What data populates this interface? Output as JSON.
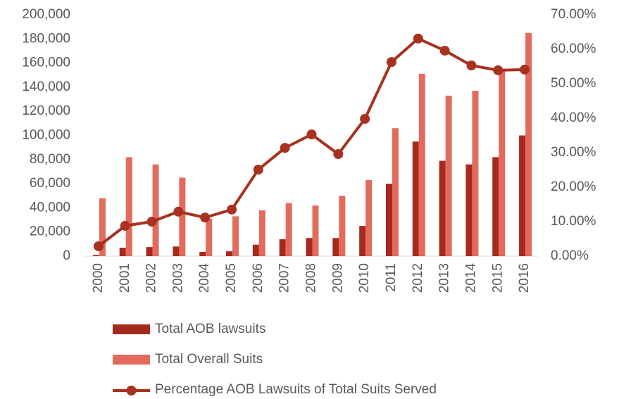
{
  "chart_data": {
    "type": "bar",
    "categories": [
      "2000",
      "2001",
      "2002",
      "2003",
      "2004",
      "2005",
      "2006",
      "2007",
      "2008",
      "2009",
      "2010",
      "2011",
      "2012",
      "2013",
      "2014",
      "2015",
      "2016"
    ],
    "series": [
      {
        "name": "Total AOB lawsuits",
        "type": "bar",
        "color": "#a52a1e",
        "values": [
          1000,
          7000,
          7500,
          8000,
          3500,
          4000,
          9500,
          14000,
          15000,
          15000,
          25000,
          60000,
          95000,
          79000,
          76000,
          82000,
          100000
        ]
      },
      {
        "name": "Total Overall Suits",
        "type": "bar",
        "color": "#e36b5d",
        "values": [
          48000,
          82000,
          76000,
          65000,
          31000,
          33000,
          38000,
          44000,
          42000,
          50000,
          63000,
          106000,
          151000,
          133000,
          137000,
          154000,
          185000
        ]
      },
      {
        "name": "Percentage AOB Lawsuits of Total Suits Served",
        "type": "line",
        "axis": "y2",
        "color": "#a8321f",
        "values": [
          2.86,
          8.8,
          10.0,
          12.9,
          11.2,
          13.5,
          25.1,
          31.4,
          35.3,
          29.6,
          39.8,
          56.3,
          63.1,
          59.6,
          55.3,
          53.9,
          54.1
        ]
      }
    ],
    "ylim": [
      0,
      200000
    ],
    "yticks": [
      0,
      {
        "value": 20000,
        "label": "20,000"
      },
      {
        "value": 40000,
        "label": "40,000"
      },
      {
        "value": 60000,
        "label": "60,000"
      },
      {
        "value": 80000,
        "label": "80,000"
      },
      {
        "value": 100000,
        "label": "100,000"
      },
      {
        "value": 120000,
        "label": "120,000"
      },
      {
        "value": 140000,
        "label": "140,000"
      },
      {
        "value": 160000,
        "label": "160,000"
      },
      {
        "value": 180000,
        "label": "180,000"
      },
      {
        "value": 200000,
        "label": "200,000"
      }
    ],
    "y2lim": [
      0,
      70
    ],
    "y2ticks": [
      {
        "value": 0,
        "label": "0.00%"
      },
      {
        "value": 10,
        "label": "10.00%"
      },
      {
        "value": 20,
        "label": "20.00%"
      },
      {
        "value": 30,
        "label": "30.00%"
      },
      {
        "value": 40,
        "label": "40.00%"
      },
      {
        "value": 50,
        "label": "50.00%"
      },
      {
        "value": 60,
        "label": "60.00%"
      },
      {
        "value": 70,
        "label": "70.00%"
      }
    ],
    "legend": "bottom"
  }
}
